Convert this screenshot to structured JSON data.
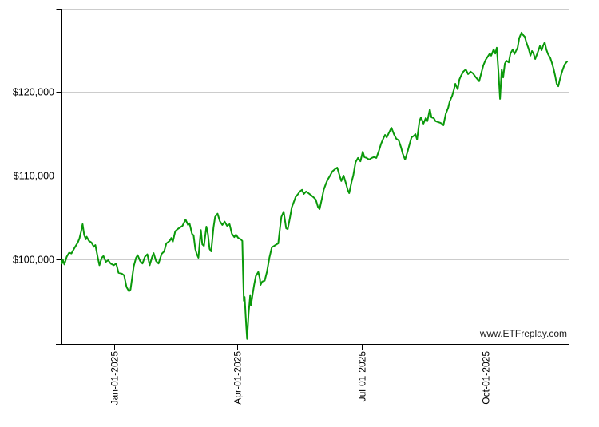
{
  "chart_data": {
    "type": "line",
    "title": "",
    "watermark": "www.ETFreplay.com",
    "grid": true,
    "legend": false,
    "x_axis": {
      "unit": "date",
      "tick_labels": [
        "Jan-01-2025",
        "Apr-01-2025",
        "Jul-01-2025",
        "Oct-01-2025"
      ],
      "tick_days": [
        38.7,
        129.0,
        220.5,
        311.4
      ],
      "domain_days": [
        0,
        373
      ]
    },
    "y_axis": {
      "tick_labels": [
        "$100,000",
        "$110,000",
        "$120,000"
      ],
      "tick_values": [
        100000,
        110000,
        120000
      ],
      "domain": [
        89900,
        129900
      ]
    },
    "series": [
      {
        "name": "portfolio-value",
        "color": "#0a990a",
        "points": [
          [
            0,
            99500
          ],
          [
            0.6,
            100000
          ],
          [
            1.8,
            99400
          ],
          [
            3.5,
            100300
          ],
          [
            5.3,
            100800
          ],
          [
            7,
            100700
          ],
          [
            9.4,
            101400
          ],
          [
            11.7,
            102000
          ],
          [
            12.9,
            102500
          ],
          [
            14.1,
            103300
          ],
          [
            15.2,
            104200
          ],
          [
            16.4,
            102900
          ],
          [
            17.6,
            102400
          ],
          [
            18.2,
            102700
          ],
          [
            19.9,
            102200
          ],
          [
            21.7,
            102000
          ],
          [
            23.5,
            101500
          ],
          [
            24.6,
            101700
          ],
          [
            26.4,
            100200
          ],
          [
            27.6,
            99300
          ],
          [
            29.3,
            100200
          ],
          [
            30.5,
            100400
          ],
          [
            32.3,
            99700
          ],
          [
            34,
            99900
          ],
          [
            35.8,
            99500
          ],
          [
            38.1,
            99300
          ],
          [
            39.9,
            99500
          ],
          [
            41.6,
            98400
          ],
          [
            44,
            98300
          ],
          [
            45.7,
            98100
          ],
          [
            47.5,
            96700
          ],
          [
            49.3,
            96200
          ],
          [
            50.4,
            96400
          ],
          [
            52.8,
            99200
          ],
          [
            54.5,
            100200
          ],
          [
            55.7,
            100500
          ],
          [
            57.5,
            99800
          ],
          [
            59.2,
            99500
          ],
          [
            61,
            100300
          ],
          [
            62.8,
            100600
          ],
          [
            64.5,
            99300
          ],
          [
            66.3,
            100300
          ],
          [
            67.4,
            100750
          ],
          [
            69.2,
            99800
          ],
          [
            71,
            99500
          ],
          [
            73.3,
            100650
          ],
          [
            75.1,
            100950
          ],
          [
            76.8,
            101900
          ],
          [
            79.2,
            102200
          ],
          [
            80.4,
            102550
          ],
          [
            81.5,
            102100
          ],
          [
            83.3,
            103350
          ],
          [
            85,
            103600
          ],
          [
            86.8,
            103800
          ],
          [
            88.6,
            104000
          ],
          [
            90.9,
            104750
          ],
          [
            92.7,
            104100
          ],
          [
            93.8,
            104300
          ],
          [
            95.6,
            103050
          ],
          [
            96.8,
            102850
          ],
          [
            98,
            101250
          ],
          [
            99.1,
            100650
          ],
          [
            100.3,
            100200
          ],
          [
            102.1,
            103500
          ],
          [
            103.2,
            101800
          ],
          [
            104.4,
            101600
          ],
          [
            106.2,
            103900
          ],
          [
            107.3,
            103050
          ],
          [
            108.5,
            101250
          ],
          [
            109.7,
            100950
          ],
          [
            111.4,
            103800
          ],
          [
            112.6,
            105050
          ],
          [
            114.4,
            105450
          ],
          [
            116.1,
            104550
          ],
          [
            117.9,
            104100
          ],
          [
            119.6,
            104500
          ],
          [
            121.4,
            104000
          ],
          [
            123.2,
            104200
          ],
          [
            124.9,
            103050
          ],
          [
            126.7,
            102650
          ],
          [
            127.9,
            102950
          ],
          [
            129.6,
            102550
          ],
          [
            131.4,
            102400
          ],
          [
            132.6,
            102200
          ],
          [
            133.1,
            98550
          ],
          [
            133.7,
            95050
          ],
          [
            134.3,
            95500
          ],
          [
            135.5,
            91900
          ],
          [
            136.1,
            90500
          ],
          [
            137.2,
            93600
          ],
          [
            137.8,
            94650
          ],
          [
            138.4,
            95750
          ],
          [
            139,
            94500
          ],
          [
            140.2,
            95900
          ],
          [
            141.3,
            96950
          ],
          [
            142.5,
            98000
          ],
          [
            144.3,
            98500
          ],
          [
            145.5,
            97700
          ],
          [
            146,
            96950
          ],
          [
            147.2,
            97350
          ],
          [
            149,
            97450
          ],
          [
            150.7,
            98550
          ],
          [
            152.5,
            100200
          ],
          [
            154.3,
            101450
          ],
          [
            156,
            101600
          ],
          [
            157.8,
            101800
          ],
          [
            159,
            101900
          ],
          [
            160.1,
            103500
          ],
          [
            161.3,
            105050
          ],
          [
            163,
            105700
          ],
          [
            164.8,
            103700
          ],
          [
            166,
            103600
          ],
          [
            167.7,
            105050
          ],
          [
            168.9,
            106200
          ],
          [
            170.7,
            106950
          ],
          [
            171.8,
            107450
          ],
          [
            173.6,
            107800
          ],
          [
            174.8,
            108100
          ],
          [
            176.5,
            108300
          ],
          [
            177.7,
            107800
          ],
          [
            179.5,
            108100
          ],
          [
            181.2,
            107900
          ],
          [
            183.6,
            107600
          ],
          [
            185.3,
            107350
          ],
          [
            186.5,
            107150
          ],
          [
            188.3,
            106200
          ],
          [
            189.4,
            106000
          ],
          [
            191.2,
            107350
          ],
          [
            192.4,
            108300
          ],
          [
            194.1,
            109050
          ],
          [
            195.3,
            109500
          ],
          [
            197.1,
            110000
          ],
          [
            198.8,
            110500
          ],
          [
            200.6,
            110750
          ],
          [
            202.3,
            110950
          ],
          [
            204.1,
            110000
          ],
          [
            205.3,
            109350
          ],
          [
            207,
            110000
          ],
          [
            208.8,
            109050
          ],
          [
            210,
            108300
          ],
          [
            211.1,
            107900
          ],
          [
            212.9,
            109250
          ],
          [
            214.1,
            110000
          ],
          [
            215.8,
            111600
          ],
          [
            217.6,
            112100
          ],
          [
            219.4,
            111700
          ],
          [
            221.1,
            112850
          ],
          [
            222.3,
            112200
          ],
          [
            224,
            112100
          ],
          [
            225.8,
            111900
          ],
          [
            227.6,
            112100
          ],
          [
            229.3,
            112200
          ],
          [
            231.1,
            112100
          ],
          [
            232.8,
            112850
          ],
          [
            234.6,
            113800
          ],
          [
            236.4,
            114500
          ],
          [
            237.5,
            114850
          ],
          [
            238.7,
            114550
          ],
          [
            239.9,
            114950
          ],
          [
            242.2,
            115700
          ],
          [
            244,
            114950
          ],
          [
            245.7,
            114400
          ],
          [
            247.5,
            114200
          ],
          [
            249.3,
            113350
          ],
          [
            250.4,
            112650
          ],
          [
            252.2,
            111900
          ],
          [
            254,
            112850
          ],
          [
            255.1,
            113500
          ],
          [
            256.9,
            114550
          ],
          [
            258.7,
            114750
          ],
          [
            259.8,
            114950
          ],
          [
            261,
            114300
          ],
          [
            262.8,
            116500
          ],
          [
            263.9,
            116950
          ],
          [
            265.7,
            116200
          ],
          [
            267.4,
            116850
          ],
          [
            268.6,
            116500
          ],
          [
            270.4,
            117900
          ],
          [
            271.6,
            116950
          ],
          [
            273.3,
            116850
          ],
          [
            274.5,
            116500
          ],
          [
            276.2,
            116400
          ],
          [
            278,
            116300
          ],
          [
            279.2,
            116200
          ],
          [
            280.4,
            116000
          ],
          [
            282.1,
            117350
          ],
          [
            283.9,
            118100
          ],
          [
            285,
            118850
          ],
          [
            286.8,
            119500
          ],
          [
            288,
            120200
          ],
          [
            289.1,
            120950
          ],
          [
            290.9,
            120300
          ],
          [
            292.1,
            121450
          ],
          [
            293.3,
            121900
          ],
          [
            295,
            122400
          ],
          [
            296.8,
            122650
          ],
          [
            298.5,
            122100
          ],
          [
            300.3,
            122400
          ],
          [
            302.1,
            122200
          ],
          [
            303.8,
            121800
          ],
          [
            305.6,
            121450
          ],
          [
            306.7,
            121250
          ],
          [
            308.5,
            122400
          ],
          [
            309.7,
            123150
          ],
          [
            311.4,
            123800
          ],
          [
            312.6,
            124100
          ],
          [
            314.4,
            124550
          ],
          [
            315.5,
            124300
          ],
          [
            317.3,
            125050
          ],
          [
            318.5,
            124550
          ],
          [
            319.6,
            125250
          ],
          [
            320.8,
            122400
          ],
          [
            322,
            119150
          ],
          [
            323.2,
            122650
          ],
          [
            324.3,
            121700
          ],
          [
            325.5,
            123350
          ],
          [
            326.7,
            123700
          ],
          [
            328.4,
            123500
          ],
          [
            329.6,
            124550
          ],
          [
            331.4,
            125050
          ],
          [
            332.6,
            124500
          ],
          [
            333.7,
            124850
          ],
          [
            334.9,
            125250
          ],
          [
            336.1,
            126400
          ],
          [
            337.8,
            127050
          ],
          [
            339,
            126750
          ],
          [
            340.2,
            126550
          ],
          [
            341.3,
            125900
          ],
          [
            343.1,
            125050
          ],
          [
            344.3,
            124300
          ],
          [
            345.5,
            124850
          ],
          [
            346.6,
            124550
          ],
          [
            347.8,
            123900
          ],
          [
            349.6,
            124650
          ],
          [
            351.3,
            125450
          ],
          [
            352.5,
            124950
          ],
          [
            353.7,
            125500
          ],
          [
            354.8,
            125900
          ],
          [
            356,
            125050
          ],
          [
            357.2,
            124500
          ],
          [
            359,
            124000
          ],
          [
            360.1,
            123450
          ],
          [
            361.3,
            122750
          ],
          [
            362.5,
            121900
          ],
          [
            363.6,
            120950
          ],
          [
            364.8,
            120650
          ],
          [
            366,
            121500
          ],
          [
            367.2,
            122200
          ],
          [
            368.3,
            122750
          ],
          [
            369.5,
            123250
          ],
          [
            370.7,
            123500
          ],
          [
            371.3,
            123600
          ]
        ]
      }
    ],
    "colors": {
      "line": "#0a990a",
      "grid": "#cccccc",
      "axis": "#000000",
      "text": "#000000"
    }
  }
}
